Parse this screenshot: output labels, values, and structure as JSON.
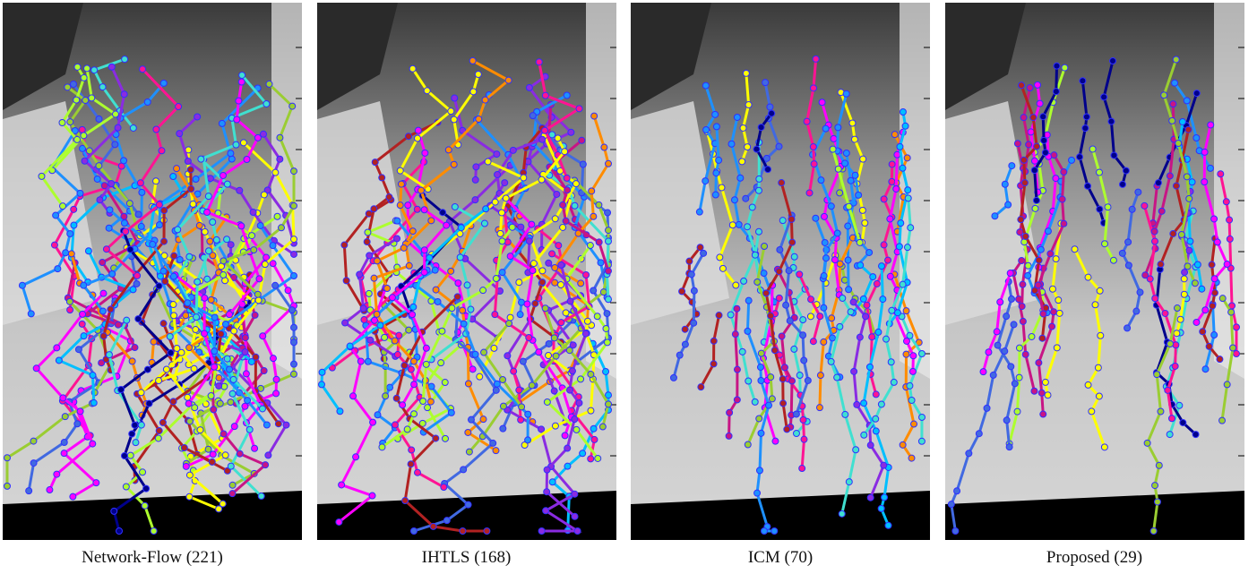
{
  "panels": [
    {
      "caption": "Network-Flow (221)"
    },
    {
      "caption": "IHTLS (168)"
    },
    {
      "caption": "ICM (70)"
    },
    {
      "caption": "Proposed (29)"
    }
  ]
}
